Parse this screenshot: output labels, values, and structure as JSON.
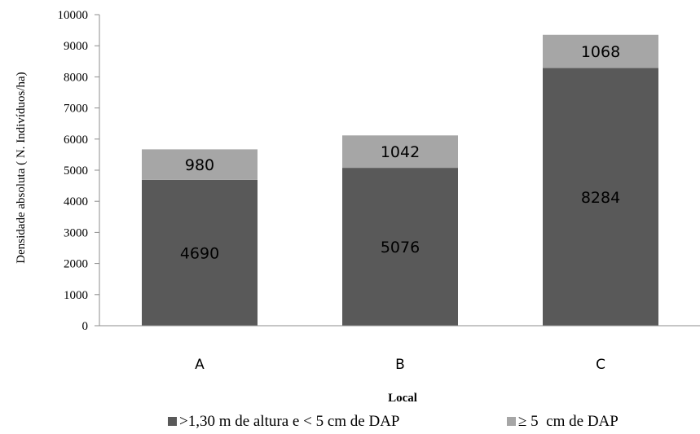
{
  "chart_data": {
    "type": "bar",
    "stacked": true,
    "categories": [
      "A",
      "B",
      "C"
    ],
    "series": [
      {
        "name": ">1,30 m de altura e < 5 cm de DAP",
        "values": [
          4690,
          5076,
          8284
        ],
        "color": "#595959"
      },
      {
        "name": "≥ 5  cm de DAP",
        "values": [
          980,
          1042,
          1068
        ],
        "color": "#a6a6a6"
      }
    ],
    "xlabel": "Local",
    "ylabel": "Densidade absoluta ( N. Indivíduos/ha)",
    "ylim": [
      0,
      10000
    ],
    "yticks": [
      0,
      1000,
      2000,
      3000,
      4000,
      5000,
      6000,
      7000,
      8000,
      9000,
      10000
    ],
    "grid": false,
    "legend": "bottom"
  }
}
